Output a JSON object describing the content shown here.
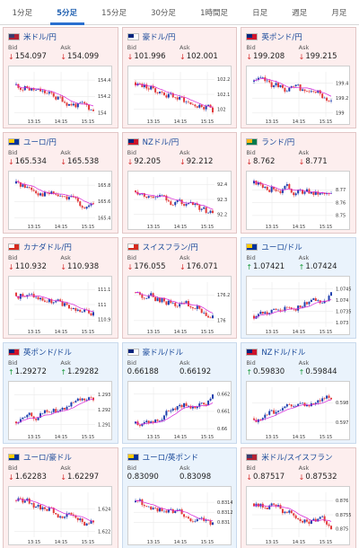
{
  "tabs": [
    {
      "label": "1分足",
      "active": false
    },
    {
      "label": "5分足",
      "active": true
    },
    {
      "label": "15分足",
      "active": false
    },
    {
      "label": "30分足",
      "active": false
    },
    {
      "label": "1時間足",
      "active": false
    },
    {
      "label": "日足",
      "active": false
    },
    {
      "label": "週足",
      "active": false
    },
    {
      "label": "月足",
      "active": false
    }
  ],
  "labels": {
    "bid": "Bid",
    "ask": "Ask"
  },
  "colors": {
    "up": "#1f3fae",
    "down": "#e23a3a",
    "ma": "#d61fd6",
    "arrow_down": "#d63030",
    "arrow_up": "#1a9a3a"
  },
  "pairs": [
    {
      "name": "米ドル/円",
      "flag": "us",
      "bg": "red",
      "bid": "154.097",
      "ask": "154.099",
      "dir": "down",
      "chart_data": {
        "type": "candlestick",
        "x_ticks": [
          "13:15",
          "14:15",
          "15:15"
        ],
        "y_ticks": [
          "154.4",
          "154.2",
          "154"
        ],
        "ylim": [
          153.95,
          154.5
        ],
        "open": 154.34,
        "close": 154.02,
        "seed": 11
      }
    },
    {
      "name": "豪ドル/円",
      "flag": "au",
      "bg": "red",
      "bid": "101.996",
      "ask": "102.001",
      "dir": "down",
      "chart_data": {
        "type": "candlestick",
        "x_ticks": [
          "13:15",
          "14:15",
          "15:15"
        ],
        "y_ticks": [
          "102.2",
          "102.1",
          "102"
        ],
        "ylim": [
          101.95,
          102.25
        ],
        "open": 102.18,
        "close": 101.98,
        "seed": 23
      }
    },
    {
      "name": "英ポンド/円",
      "flag": "gb",
      "bg": "red",
      "bid": "199.208",
      "ask": "199.215",
      "dir": "down",
      "chart_data": {
        "type": "candlestick",
        "x_ticks": [
          "13:15",
          "14:15",
          "15:15"
        ],
        "y_ticks": [
          "199.4",
          "199.2",
          "199"
        ],
        "ylim": [
          198.95,
          199.55
        ],
        "open": 199.42,
        "close": 199.2,
        "seed": 37
      }
    },
    {
      "name": "ユーロ/円",
      "flag": "eu",
      "bg": "red",
      "bid": "165.534",
      "ask": "165.538",
      "dir": "down",
      "chart_data": {
        "type": "candlestick",
        "x_ticks": [
          "13:15",
          "14:15",
          "15:15"
        ],
        "y_ticks": [
          "165.8",
          "165.6",
          "165.4"
        ],
        "ylim": [
          165.35,
          165.9
        ],
        "open": 165.82,
        "close": 165.52,
        "seed": 41
      }
    },
    {
      "name": "NZドル/円",
      "flag": "nz",
      "bg": "red",
      "bid": "92.205",
      "ask": "92.212",
      "dir": "down",
      "chart_data": {
        "type": "candlestick",
        "x_ticks": [
          "13:15",
          "14:15",
          "15:15"
        ],
        "y_ticks": [
          "92.4",
          "92.3",
          "92.2"
        ],
        "ylim": [
          92.15,
          92.45
        ],
        "open": 92.36,
        "close": 92.2,
        "seed": 53
      }
    },
    {
      "name": "ランド/円",
      "flag": "za",
      "bg": "red",
      "bid": "8.762",
      "ask": "8.771",
      "dir": "down",
      "chart_data": {
        "type": "candlestick",
        "x_ticks": [
          "13:15",
          "14:15",
          "15:15"
        ],
        "y_ticks": [
          "8.77",
          "8.76",
          "8.75"
        ],
        "ylim": [
          8.745,
          8.78
        ],
        "open": 8.775,
        "close": 8.765,
        "seed": 67
      }
    },
    {
      "name": "カナダドル/円",
      "flag": "ca",
      "bg": "red",
      "bid": "110.932",
      "ask": "110.938",
      "dir": "down",
      "chart_data": {
        "type": "candlestick",
        "x_ticks": [
          "13:15",
          "14:15",
          "15:15"
        ],
        "y_ticks": [
          "111.1",
          "111",
          "110.9"
        ],
        "ylim": [
          110.85,
          111.15
        ],
        "open": 111.08,
        "close": 110.93,
        "seed": 71
      }
    },
    {
      "name": "スイスフラン/円",
      "flag": "ch",
      "bg": "red",
      "bid": "176.055",
      "ask": "176.071",
      "dir": "down",
      "chart_data": {
        "type": "candlestick",
        "x_ticks": [
          "13:15",
          "14:15",
          "15:15"
        ],
        "y_ticks": [
          "176.2",
          "176"
        ],
        "ylim": [
          175.95,
          176.3
        ],
        "open": 176.22,
        "close": 176.05,
        "seed": 83
      }
    },
    {
      "name": "ユーロ/ドル",
      "flag": "eu",
      "bg": "blue",
      "bid": "1.07421",
      "ask": "1.07424",
      "dir": "up",
      "chart_data": {
        "type": "candlestick",
        "x_ticks": [
          "13:15",
          "14:15",
          "15:15"
        ],
        "y_ticks": [
          "1.0745",
          "1.074",
          "1.0735",
          "1.073"
        ],
        "ylim": [
          1.0728,
          1.0748
        ],
        "open": 1.0733,
        "close": 1.0742,
        "seed": 97
      }
    },
    {
      "name": "英ポンド/ドル",
      "flag": "gb",
      "bg": "blue",
      "bid": "1.29272",
      "ask": "1.29282",
      "dir": "up",
      "chart_data": {
        "type": "candlestick",
        "x_ticks": [
          "13:15",
          "14:15",
          "15:15"
        ],
        "y_ticks": [
          "1.293",
          "1.292",
          "1.291"
        ],
        "ylim": [
          1.2905,
          1.2935
        ],
        "open": 1.2912,
        "close": 1.2927,
        "seed": 101
      }
    },
    {
      "name": "豪ドル/ドル",
      "flag": "au",
      "bg": "blue",
      "bid": "0.66188",
      "ask": "0.66192",
      "dir": "none",
      "chart_data": {
        "type": "candlestick",
        "x_ticks": [
          "13:15",
          "14:15",
          "15:15"
        ],
        "y_ticks": [
          "0.662",
          "0.661",
          "0.66"
        ],
        "ylim": [
          0.6598,
          0.6624
        ],
        "open": 0.6603,
        "close": 0.6619,
        "seed": 113
      }
    },
    {
      "name": "NZドル/ドル",
      "flag": "nz",
      "bg": "blue",
      "bid": "0.59830",
      "ask": "0.59844",
      "dir": "up",
      "chart_data": {
        "type": "candlestick",
        "x_ticks": [
          "13:15",
          "14:15",
          "15:15"
        ],
        "y_ticks": [
          "0.598",
          "0.597"
        ],
        "ylim": [
          0.5965,
          0.5988
        ],
        "open": 0.5972,
        "close": 0.5983,
        "seed": 127
      }
    },
    {
      "name": "ユーロ/豪ドル",
      "flag": "eu",
      "bg": "red",
      "bid": "1.62283",
      "ask": "1.62297",
      "dir": "down",
      "chart_data": {
        "type": "candlestick",
        "x_ticks": [
          "13:15",
          "14:15",
          "15:15"
        ],
        "y_ticks": [
          "1.624",
          "1.622"
        ],
        "ylim": [
          1.6215,
          1.6255
        ],
        "open": 1.6248,
        "close": 1.6226,
        "seed": 131
      }
    },
    {
      "name": "ユーロ/英ポンド",
      "flag": "eu",
      "bg": "blue",
      "bid": "0.83090",
      "ask": "0.83098",
      "dir": "none",
      "chart_data": {
        "type": "candlestick",
        "x_ticks": [
          "13:15",
          "14:15",
          "15:15"
        ],
        "y_ticks": [
          "0.8314",
          "0.8312",
          "0.831"
        ],
        "ylim": [
          0.8307,
          0.8316
        ],
        "open": 0.8314,
        "close": 0.8309,
        "seed": 139
      }
    },
    {
      "name": "米ドル/スイスフラン",
      "flag": "us",
      "bg": "red",
      "bid": "0.87517",
      "ask": "0.87532",
      "dir": "down",
      "chart_data": {
        "type": "candlestick",
        "x_ticks": [
          "13:15",
          "14:15",
          "15:15"
        ],
        "y_ticks": [
          "0.876",
          "0.8755",
          "0.875"
        ],
        "ylim": [
          0.8747,
          0.8763
        ],
        "open": 0.8759,
        "close": 0.8751,
        "seed": 149
      }
    }
  ]
}
